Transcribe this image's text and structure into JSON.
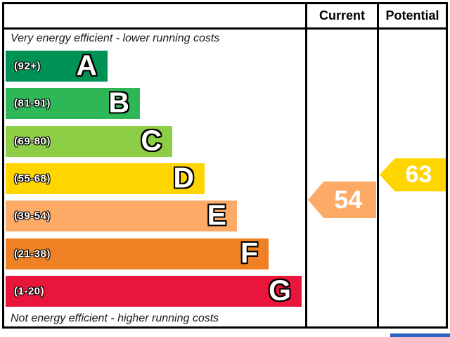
{
  "header": {
    "current_label": "Current",
    "potential_label": "Potential"
  },
  "captions": {
    "top": "Very energy efficient - lower running costs",
    "bottom": "Not energy efficient - higher running costs"
  },
  "chart_data": {
    "type": "bar",
    "title": "EPC energy efficiency rating chart",
    "orientation": "horizontal",
    "bands": [
      {
        "letter": "A",
        "range_label": "(92+)",
        "score_min": 92,
        "score_max": 100,
        "color": "#009254"
      },
      {
        "letter": "B",
        "range_label": "(81-91)",
        "score_min": 81,
        "score_max": 91,
        "color": "#2db757"
      },
      {
        "letter": "C",
        "range_label": "(69-80)",
        "score_min": 69,
        "score_max": 80,
        "color": "#8dce46"
      },
      {
        "letter": "D",
        "range_label": "(55-68)",
        "score_min": 55,
        "score_max": 68,
        "color": "#ffd500"
      },
      {
        "letter": "E",
        "range_label": "(39-54)",
        "score_min": 39,
        "score_max": 54,
        "color": "#fcaa65"
      },
      {
        "letter": "F",
        "range_label": "(21-38)",
        "score_min": 21,
        "score_max": 38,
        "color": "#ef8023"
      },
      {
        "letter": "G",
        "range_label": "(1-20)",
        "score_min": 1,
        "score_max": 20,
        "color": "#e9153b"
      }
    ],
    "current": {
      "value": "54",
      "band": "E",
      "arrow_color": "#fcaa65"
    },
    "potential": {
      "value": "63",
      "band": "D",
      "arrow_color": "#ffd500"
    }
  },
  "accents": {
    "table_border_color": "#000000",
    "bottom_strip_color": "#2a5fc4"
  }
}
